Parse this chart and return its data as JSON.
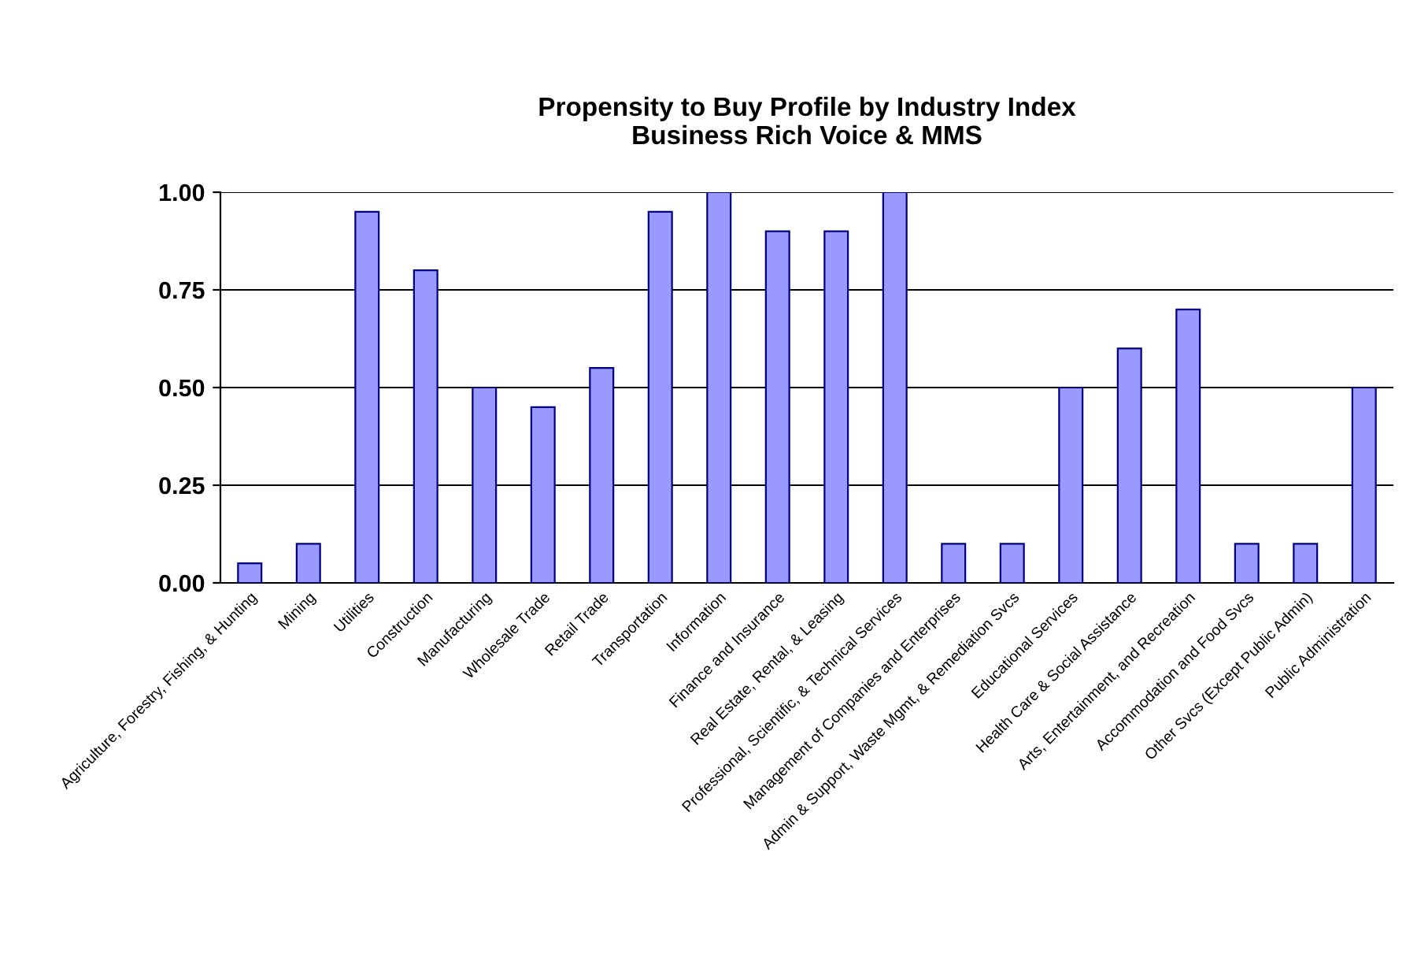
{
  "chart_data": {
    "type": "bar",
    "title": "Propensity to Buy Profile by Industry Index\nBusiness Rich Voice & MMS",
    "categories": [
      "Agriculture, Forestry, Fishing, & Hunting",
      "Mining",
      "Utilities",
      "Construction",
      "Manufacturing",
      "Wholesale Trade",
      "Retail Trade",
      "Transportation",
      "Information",
      "Finance and Insurance",
      "Real Estate, Rental, & Leasing",
      "Professional, Scientific, & Technical Services",
      "Management of Companies and Enterprises",
      "Admin & Support, Waste Mgmt, & Remediation Svcs",
      "Educational Services",
      "Health Care & Social Assistance",
      "Arts, Entertainment, and Recreation",
      "Accommodation and Food Svcs",
      "Other Svcs (Except Public Admin)",
      "Public Administration"
    ],
    "values": [
      0.05,
      0.1,
      0.95,
      0.8,
      0.5,
      0.45,
      0.55,
      0.95,
      1.0,
      0.9,
      0.9,
      1.0,
      0.1,
      0.1,
      0.5,
      0.6,
      0.7,
      0.1,
      0.1,
      0.5
    ],
    "color": "#9999ff",
    "ylim": [
      0,
      1
    ],
    "yticks": [
      {
        "value": 0,
        "label": "0.00"
      },
      {
        "value": 0.25,
        "label": "0.25"
      },
      {
        "value": 0.5,
        "label": "0.50"
      },
      {
        "value": 0.75,
        "label": "0.75"
      },
      {
        "value": 1,
        "label": "1.00"
      }
    ],
    "grid": "y"
  }
}
